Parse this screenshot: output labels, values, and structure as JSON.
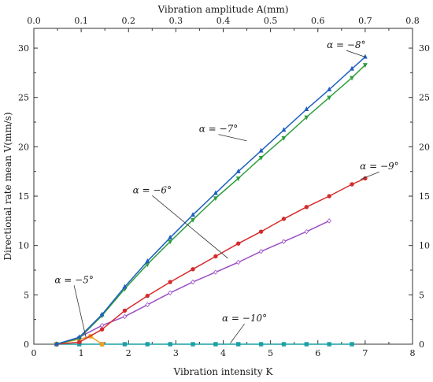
{
  "chart_data": {
    "type": "line",
    "xlabel": "Vibration intensity K",
    "x2label": "Vibration amplitude A(mm)",
    "ylabel": "Directional rate mean V(mm/s)",
    "xlim": [
      0,
      8
    ],
    "x2lim": [
      0,
      0.8
    ],
    "ylim": [
      0,
      32
    ],
    "x_ticks": [
      "0",
      "1",
      "2",
      "3",
      "4",
      "5",
      "6",
      "7",
      "8"
    ],
    "x2_ticks": [
      "0.0",
      "0.1",
      "0.2",
      "0.3",
      "0.4",
      "0.5",
      "0.6",
      "0.7",
      "0.8"
    ],
    "y_ticks": [
      "0",
      "5",
      "10",
      "15",
      "20",
      "25",
      "30"
    ],
    "grid": false,
    "series": [
      {
        "name": "α = −8°",
        "color": "#1f5fbf",
        "marker": "triangle-up",
        "x": [
          0.48,
          0.96,
          1.44,
          1.92,
          2.4,
          2.88,
          3.36,
          3.84,
          4.32,
          4.8,
          5.28,
          5.76,
          6.24,
          6.72,
          7.0
        ],
        "y": [
          0,
          0.7,
          3.0,
          5.8,
          8.4,
          10.8,
          13.1,
          15.3,
          17.5,
          19.6,
          21.7,
          23.8,
          25.8,
          27.9,
          29.1
        ]
      },
      {
        "name": "α = −7°",
        "color": "#2e9e3e",
        "marker": "triangle-down",
        "x": [
          0.48,
          0.96,
          1.44,
          1.92,
          2.4,
          2.88,
          3.36,
          3.84,
          4.32,
          4.8,
          5.28,
          5.76,
          6.24,
          6.72,
          7.0
        ],
        "y": [
          0,
          0.6,
          2.9,
          5.6,
          8.1,
          10.4,
          12.6,
          14.8,
          16.8,
          18.9,
          20.9,
          23.0,
          25.0,
          27.0,
          28.3
        ]
      },
      {
        "name": "α = −9°",
        "color": "#d62b2b",
        "marker": "circle",
        "x": [
          0.48,
          0.96,
          1.44,
          1.92,
          2.4,
          2.88,
          3.36,
          3.84,
          4.32,
          4.8,
          5.28,
          5.76,
          6.24,
          6.72,
          7.0
        ],
        "y": [
          0,
          0.2,
          1.5,
          3.4,
          4.9,
          6.3,
          7.6,
          8.9,
          10.2,
          11.4,
          12.7,
          13.9,
          15.0,
          16.2,
          16.8
        ]
      },
      {
        "name": "α = −6°",
        "color": "#9b4fc6",
        "marker": "diamond",
        "x": [
          0.48,
          0.96,
          1.44,
          1.92,
          2.4,
          2.88,
          3.36,
          3.84,
          4.32,
          4.8,
          5.28,
          5.76,
          6.24
        ],
        "y": [
          0,
          0.7,
          1.9,
          2.8,
          4.0,
          5.2,
          6.3,
          7.3,
          8.3,
          9.4,
          10.4,
          11.4,
          12.5
        ]
      },
      {
        "name": "α = −5°",
        "color": "#f0a020",
        "marker": "square",
        "x": [
          0.48,
          0.96,
          1.2,
          1.44
        ],
        "y": [
          0,
          0.5,
          0.8,
          0
        ]
      },
      {
        "name": "α = −10°",
        "color": "#1aa0a6",
        "marker": "square",
        "x": [
          0.48,
          0.96,
          1.44,
          1.92,
          2.4,
          2.88,
          3.36,
          3.84,
          4.32,
          4.8,
          5.28,
          5.76,
          6.24,
          6.72
        ],
        "y": [
          0,
          0,
          0,
          0,
          0,
          0,
          0,
          0,
          0,
          0,
          0,
          0,
          0,
          0
        ]
      }
    ],
    "annotations": [
      {
        "text": "α = −8°",
        "x": 6.6,
        "y": 30.0,
        "arrow_to": [
          7.0,
          29.1
        ]
      },
      {
        "text": "α = −7°",
        "x": 3.9,
        "y": 21.5,
        "arrow_to": [
          4.5,
          20.6
        ]
      },
      {
        "text": "α = −9°",
        "x": 7.3,
        "y": 17.7,
        "arrow_to": [
          6.9,
          16.7
        ]
      },
      {
        "text": "α = −6°",
        "x": 2.5,
        "y": 15.3,
        "arrow_to": [
          4.1,
          8.7
        ]
      },
      {
        "text": "α = −5°",
        "x": 0.85,
        "y": 6.2,
        "arrow_to": [
          1.1,
          0.7
        ]
      },
      {
        "text": "α = −10°",
        "x": 4.45,
        "y": 2.3,
        "arrow_to": [
          4.15,
          0.1
        ]
      }
    ]
  }
}
